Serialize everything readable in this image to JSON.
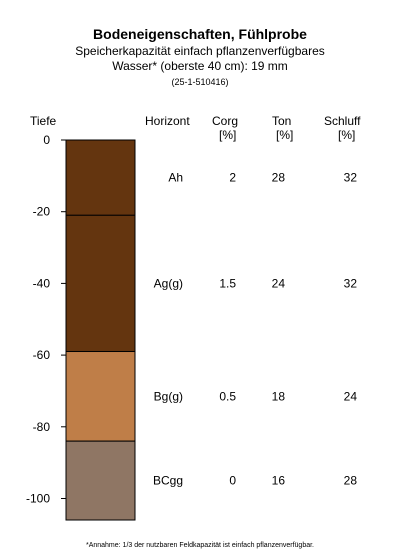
{
  "title": "Bodeneigenschaften, Fühlprobe",
  "subtitle_line1": "Speicherkapazität einfach pflanzenverfügbares",
  "subtitle_line2": "Wasser* (oberste 40 cm): 19 mm",
  "code": "(25-1-510416)",
  "footnote": "*Annahme: 1/3 der nutzbaren Feldkapazität ist einfach pflanzenverfügbar.",
  "headers": {
    "tiefe": "Tiefe",
    "horizont": "Horizont",
    "corg": "Corg",
    "corg_unit": "[%]",
    "ton": "Ton",
    "ton_unit": "[%]",
    "schluff": "Schluff",
    "schluff_unit": "[%]"
  },
  "chart_data": {
    "type": "table",
    "ylabel": "Tiefe",
    "ylim": [
      0,
      -106
    ],
    "y_ticks": [
      0,
      -20,
      -40,
      -60,
      -80,
      -100
    ],
    "columns": [
      "Horizont",
      "Corg [%]",
      "Ton [%]",
      "Schluff [%]"
    ],
    "layers": [
      {
        "horizont": "Ah",
        "top": 0,
        "bottom": -21,
        "corg": "2",
        "ton": "28",
        "schluff": "32",
        "color": "#64350F"
      },
      {
        "horizont": "Ag(g)",
        "top": -21,
        "bottom": -59,
        "corg": "1.5",
        "ton": "24",
        "schluff": "32",
        "color": "#64350F"
      },
      {
        "horizont": "Bg(g)",
        "top": -59,
        "bottom": -84,
        "corg": "0.5",
        "ton": "18",
        "schluff": "24",
        "color": "#BF7E48"
      },
      {
        "horizont": "BCgg",
        "top": -84,
        "bottom": -106,
        "corg": "0",
        "ton": "16",
        "schluff": "28",
        "color": "#8F7664"
      }
    ]
  }
}
